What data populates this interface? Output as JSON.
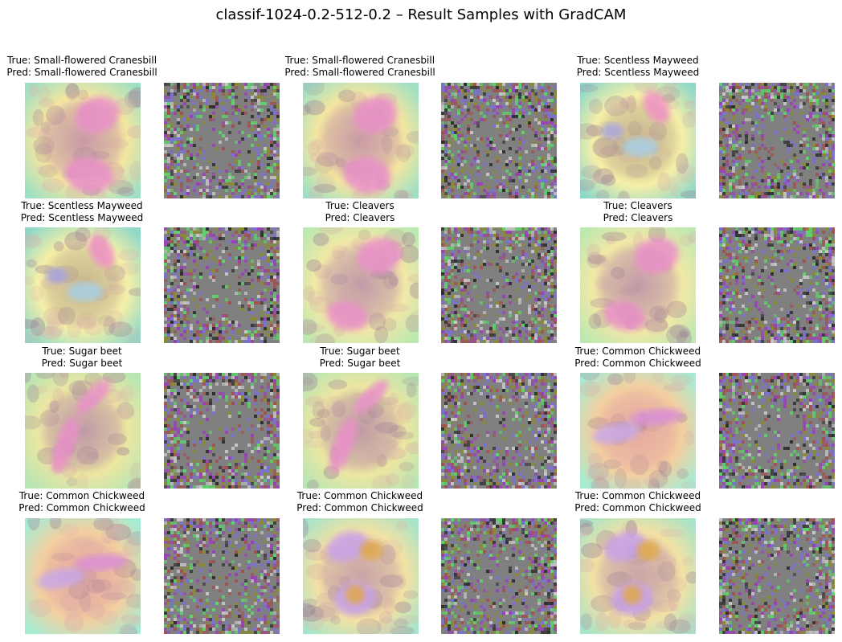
{
  "figure": {
    "title": "classif-1024-0.2-512-0.2 – Result Samples with GradCAM"
  },
  "samples": [
    {
      "true_label": "True: Small-flowered Cranesbill",
      "pred_label": "Pred: Small-flowered Cranesbill",
      "theme": "cranesbill"
    },
    {
      "true_label": "True: Small-flowered Cranesbill",
      "pred_label": "Pred: Small-flowered Cranesbill",
      "theme": "cranesbill"
    },
    {
      "true_label": "True: Scentless Mayweed",
      "pred_label": "Pred: Scentless Mayweed",
      "theme": "mayweed"
    },
    {
      "true_label": "True: Scentless Mayweed",
      "pred_label": "Pred: Scentless Mayweed",
      "theme": "mayweed"
    },
    {
      "true_label": "True: Cleavers",
      "pred_label": "Pred: Cleavers",
      "theme": "cleavers"
    },
    {
      "true_label": "True: Cleavers",
      "pred_label": "Pred: Cleavers",
      "theme": "cleavers"
    },
    {
      "true_label": "True: Sugar beet",
      "pred_label": "Pred: Sugar beet",
      "theme": "beet"
    },
    {
      "true_label": "True: Sugar beet",
      "pred_label": "Pred: Sugar beet",
      "theme": "beet"
    },
    {
      "true_label": "True: Common Chickweed",
      "pred_label": "Pred: Common Chickweed",
      "theme": "chickweed"
    },
    {
      "true_label": "True: Common Chickweed",
      "pred_label": "Pred: Common Chickweed",
      "theme": "chickweed"
    },
    {
      "true_label": "True: Common Chickweed",
      "pred_label": "Pred: Common Chickweed",
      "theme": "chickweed-seeds"
    },
    {
      "true_label": "True: Common Chickweed",
      "pred_label": "Pred: Common Chickweed",
      "theme": "chickweed-seeds"
    }
  ],
  "colors": {
    "noise_base": "#808080",
    "noise_palette": [
      "#7b6fd6",
      "#8a8a2e",
      "#5fd26a",
      "#9a3fb8",
      "#c8c8c8",
      "#2e2e2e",
      "#a05050"
    ]
  }
}
